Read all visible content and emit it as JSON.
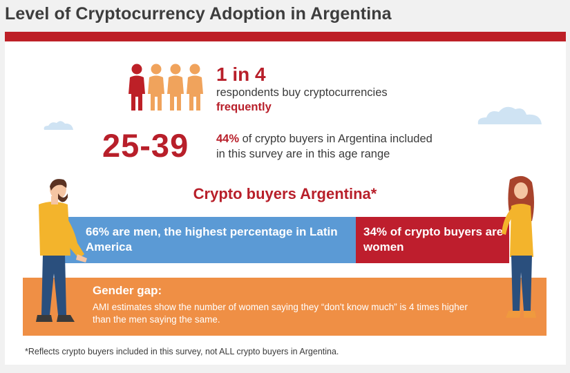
{
  "title": "Level of Cryptocurrency Adoption in Argentina",
  "stat1": {
    "number": "1 in 4",
    "line1": "respondents buy cryptocurrencies",
    "line2_bold": "frequently",
    "icons_highlighted": 1,
    "icons_total": 4
  },
  "stat2": {
    "number": "25-39",
    "percent": "44%",
    "text_after_percent": "of crypto buyers in Argentina included",
    "line2": "in this survey are in this age range"
  },
  "gender": {
    "title": "Crypto buyers Argentina*",
    "men_text": "66% are men, the highest percentage in Latin America",
    "women_text": "34% of crypto buyers are women",
    "men_share": 66,
    "women_share": 34
  },
  "gap": {
    "title": "Gender gap:",
    "text": "AMI estimates show the number of women saying they “don't know much” is 4 times higher than the men saying the same."
  },
  "footnote": "*Reflects crypto buyers included in this survey, not ALL crypto buyers in Argentina.",
  "colors": {
    "accent_red": "#bd2027",
    "men_blue": "#5b9ad5",
    "orange": "#ef8f45",
    "person_orange": "#f0a35c",
    "cloud_blue": "#cfe3f3"
  },
  "icons": [
    "person-icon",
    "cloud-icon",
    "man-illustration",
    "woman-illustration"
  ]
}
